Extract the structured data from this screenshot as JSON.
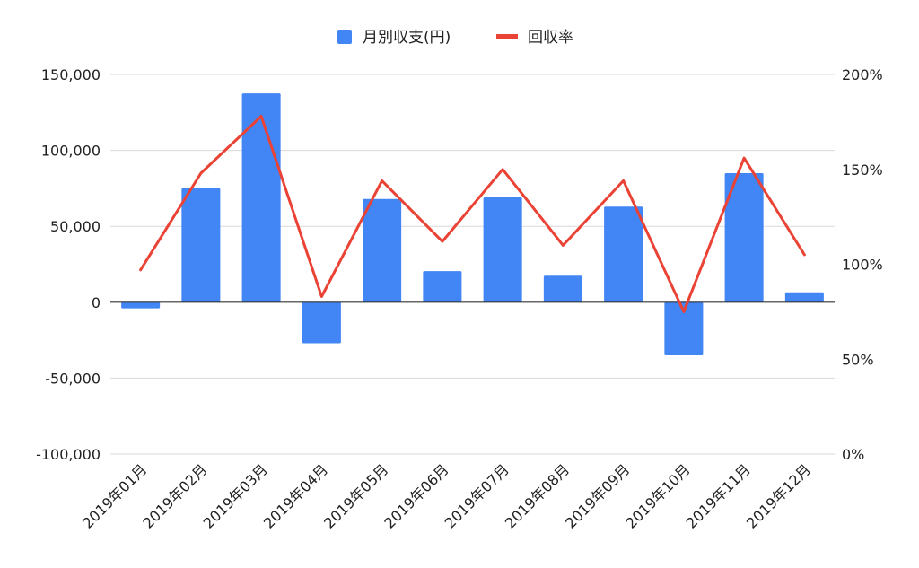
{
  "chart_data": {
    "type": "bar",
    "categories": [
      "2019年01月",
      "2019年02月",
      "2019年03月",
      "2019年04月",
      "2019年05月",
      "2019年06月",
      "2019年07月",
      "2019年08月",
      "2019年09月",
      "2019年10月",
      "2019年11月",
      "2019年12月"
    ],
    "series": [
      {
        "name": "月別収支(円)",
        "type": "bar",
        "axis": "left",
        "color": "#4285f4",
        "values": [
          -4000,
          75000,
          137500,
          -27000,
          68000,
          20500,
          69000,
          17500,
          63000,
          -35000,
          85000,
          6500
        ]
      },
      {
        "name": "回収率",
        "type": "line",
        "axis": "right",
        "color": "#ea4335",
        "values": [
          0.97,
          1.48,
          1.78,
          0.83,
          1.44,
          1.12,
          1.5,
          1.1,
          1.44,
          0.75,
          1.56,
          1.05
        ]
      }
    ],
    "left_axis": {
      "ylim": [
        -100000,
        150000
      ],
      "ticks": [
        -100000,
        -50000,
        0,
        50000,
        100000,
        150000
      ],
      "tick_labels": [
        "-100,000",
        "-50,000",
        "0",
        "50,000",
        "100,000",
        "150,000"
      ]
    },
    "right_axis": {
      "ylim": [
        0,
        2
      ],
      "ticks": [
        0,
        0.5,
        1,
        1.5,
        2
      ],
      "tick_labels": [
        "0%",
        "50%",
        "100%",
        "150%",
        "200%"
      ]
    },
    "legend_position": "top-center",
    "grid": true,
    "title": "",
    "xlabel": "",
    "ylabel": ""
  }
}
